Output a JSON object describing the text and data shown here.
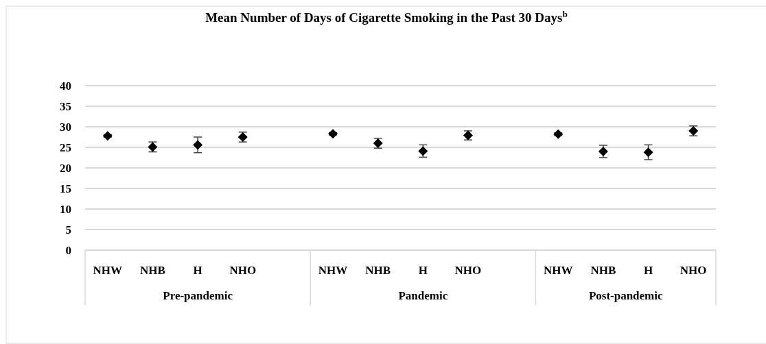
{
  "chart_data": {
    "type": "scatter",
    "title": "Mean Number of Days of Cigarette Smoking in the Past 30 Days$^{b}$",
    "categories": [
      "NHW",
      "NHB",
      "H",
      "NHO",
      null,
      "NHW",
      "NHB",
      "H",
      "NHO",
      null,
      "NHW",
      "NHB",
      "H",
      "NHO"
    ],
    "series": [
      {
        "color": "#000000",
        "values": [
          27.8,
          25.1,
          25.6,
          27.5,
          null,
          28.3,
          26.0,
          24.1,
          27.9,
          null,
          28.2,
          24.0,
          23.8,
          29.0
        ],
        "errors": [
          0.3,
          1.2,
          1.9,
          1.2,
          null,
          0.3,
          1.2,
          1.5,
          1.1,
          null,
          0.3,
          1.5,
          1.8,
          1.2
        ]
      }
    ],
    "annotations": [
      "Pre-pandemic",
      "Pandemic",
      "Post-pandemic"
    ],
    "ylim": [
      0,
      40
    ],
    "yticks": [
      0,
      5,
      10,
      15,
      20,
      25,
      30,
      35,
      40
    ],
    "grid": "y",
    "marker": "diamond"
  }
}
